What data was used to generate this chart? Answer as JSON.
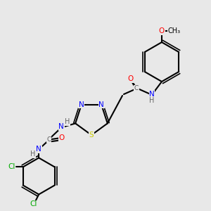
{
  "bg_color": "#e8e8e8",
  "bond_color": "#000000",
  "bond_lw": 1.5,
  "atom_colors": {
    "N": "#0000ff",
    "S": "#cccc00",
    "O": "#ff0000",
    "Cl": "#00aa00",
    "H": "#666666",
    "C": "#000000"
  },
  "font_size": 7.5
}
